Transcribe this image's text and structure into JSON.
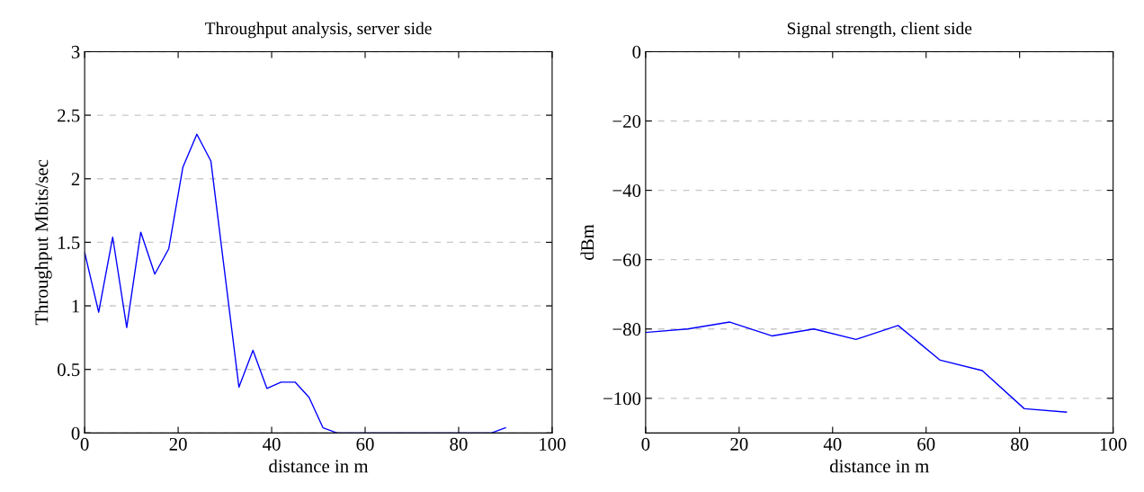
{
  "chart_data": [
    {
      "type": "line",
      "title": "Throughput analysis, server side",
      "xlabel": "distance in m",
      "ylabel": "Throughput Mbits/sec",
      "x": [
        0,
        3,
        6,
        9,
        12,
        15,
        18,
        21,
        24,
        27,
        33,
        36,
        39,
        42,
        45,
        48,
        51,
        54,
        57,
        60,
        63,
        66,
        69,
        72,
        75,
        78,
        81,
        84,
        87,
        90
      ],
      "series": [
        {
          "color": "#0000ff",
          "values": [
            1.42,
            0.95,
            1.54,
            0.83,
            1.58,
            1.25,
            1.45,
            2.09,
            2.35,
            2.14,
            0.36,
            0.65,
            0.35,
            0.4,
            0.4,
            0.28,
            0.04,
            0,
            0,
            0,
            0,
            0,
            0,
            0,
            0,
            0,
            0,
            0,
            0,
            0.04
          ]
        }
      ],
      "xlim": [
        0,
        100
      ],
      "xticks": [
        0,
        20,
        40,
        60,
        80,
        100
      ],
      "ylim": [
        0,
        3
      ],
      "yticks": [
        0,
        0.5,
        1,
        1.5,
        2,
        2.5,
        3
      ],
      "grid": "y",
      "line_style": "solid",
      "marker": "none"
    },
    {
      "type": "line",
      "title": "Signal strength, client side",
      "xlabel": "distance in m",
      "ylabel": "dBm",
      "x": [
        0,
        9,
        18,
        27,
        36,
        45,
        54,
        63,
        72,
        81,
        90
      ],
      "series": [
        {
          "color": "#0000ff",
          "values": [
            -81,
            -80,
            -78,
            -82,
            -80,
            -83,
            -79,
            -89,
            -92,
            -103,
            -104
          ]
        }
      ],
      "xlim": [
        0,
        100
      ],
      "xticks": [
        0,
        20,
        40,
        60,
        80,
        100
      ],
      "ylim": [
        -110,
        0
      ],
      "yticks": [
        0,
        {
          "value": -20,
          "label": "−20"
        },
        {
          "value": -40,
          "label": "−40"
        },
        {
          "value": -60,
          "label": "−60"
        },
        {
          "value": -80,
          "label": "−80"
        },
        {
          "value": -100,
          "label": "−100"
        }
      ],
      "grid": "y",
      "line_style": "solid",
      "marker": "none"
    }
  ]
}
